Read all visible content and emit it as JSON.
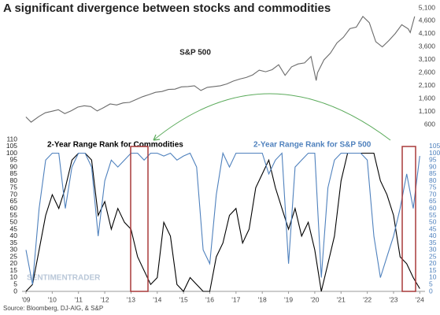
{
  "chart_data": [
    {
      "type": "line",
      "title": "A significant divergence between stocks and commodities",
      "x": [
        2009.0,
        2009.2,
        2009.5,
        2009.75,
        2010.0,
        2010.25,
        2010.5,
        2010.75,
        2011.0,
        2011.25,
        2011.5,
        2011.75,
        2012.0,
        2012.25,
        2012.5,
        2012.75,
        2013.0,
        2013.25,
        2013.5,
        2013.75,
        2014.0,
        2014.25,
        2014.5,
        2014.75,
        2015.0,
        2015.25,
        2015.5,
        2015.75,
        2016.0,
        2016.25,
        2016.5,
        2016.75,
        2017.0,
        2017.25,
        2017.5,
        2017.75,
        2018.0,
        2018.25,
        2018.5,
        2018.75,
        2019.0,
        2019.25,
        2019.5,
        2019.75,
        2020.0,
        2020.2,
        2020.25,
        2020.5,
        2020.75,
        2021.0,
        2021.25,
        2021.5,
        2021.75,
        2022.0,
        2022.25,
        2022.5,
        2022.75,
        2023.0,
        2023.25,
        2023.5,
        2023.75,
        2023.83,
        2024.0
      ],
      "series": [
        {
          "name": "S&P 500",
          "color": "#6b6b6b",
          "values": [
            900,
            700,
            920,
            1060,
            1120,
            1180,
            1030,
            1140,
            1280,
            1330,
            1300,
            1130,
            1260,
            1400,
            1360,
            1440,
            1460,
            1570,
            1680,
            1760,
            1850,
            1880,
            1960,
            1970,
            2060,
            2070,
            2100,
            1920,
            2040,
            2070,
            2100,
            2170,
            2280,
            2360,
            2420,
            2520,
            2700,
            2640,
            2720,
            2910,
            2500,
            2830,
            2940,
            2980,
            3230,
            2300,
            2600,
            3100,
            3360,
            3750,
            3970,
            4300,
            4360,
            4770,
            4530,
            3800,
            3600,
            3840,
            4110,
            4450,
            4290,
            4150,
            4770
          ]
        }
      ],
      "xlim": [
        2008.85,
        2024.4
      ],
      "ylim": [
        400,
        5100
      ],
      "yticks": [
        {
          "value": 600,
          "label": "600"
        },
        {
          "value": 1100,
          "label": "1,100"
        },
        {
          "value": 1600,
          "label": "1,600"
        },
        {
          "value": 2100,
          "label": "2,100"
        },
        {
          "value": 2600,
          "label": "2,600"
        },
        {
          "value": 3100,
          "label": "3,100"
        },
        {
          "value": 3600,
          "label": "3,600"
        },
        {
          "value": 4100,
          "label": "4,100"
        },
        {
          "value": 4600,
          "label": "4,600"
        },
        {
          "value": 5100,
          "label": "5,100"
        }
      ]
    },
    {
      "type": "line",
      "source": "Source: Bloomberg, DJ-AIG, & S&P",
      "watermark": "SENTIMENTRADER",
      "x": [
        2009.0,
        2009.25,
        2009.5,
        2009.75,
        2010.0,
        2010.25,
        2010.5,
        2010.75,
        2011.0,
        2011.25,
        2011.5,
        2011.75,
        2012.0,
        2012.25,
        2012.5,
        2012.75,
        2013.0,
        2013.25,
        2013.5,
        2013.75,
        2014.0,
        2014.25,
        2014.5,
        2014.75,
        2015.0,
        2015.25,
        2015.5,
        2015.75,
        2016.0,
        2016.25,
        2016.5,
        2016.75,
        2017.0,
        2017.25,
        2017.5,
        2017.75,
        2018.0,
        2018.25,
        2018.5,
        2018.75,
        2019.0,
        2019.25,
        2019.5,
        2019.75,
        2020.0,
        2020.25,
        2020.5,
        2020.75,
        2021.0,
        2021.25,
        2021.5,
        2021.75,
        2022.0,
        2022.25,
        2022.5,
        2022.75,
        2023.0,
        2023.25,
        2023.5,
        2023.75,
        2024.0
      ],
      "series": [
        {
          "name": "2-Year Range Rank for Commodities",
          "color": "#000000",
          "values": [
            0,
            5,
            30,
            55,
            70,
            60,
            75,
            95,
            100,
            100,
            95,
            55,
            65,
            45,
            60,
            50,
            45,
            25,
            15,
            5,
            10,
            50,
            40,
            5,
            0,
            10,
            5,
            0,
            0,
            25,
            35,
            55,
            60,
            35,
            45,
            75,
            85,
            95,
            75,
            60,
            45,
            60,
            40,
            50,
            30,
            0,
            20,
            40,
            80,
            100,
            100,
            100,
            100,
            100,
            80,
            70,
            55,
            25,
            20,
            10,
            2
          ]
        },
        {
          "name": "2-Year Range Rank for S&P 500",
          "color": "#4f81bd",
          "axis": "y2",
          "values": [
            30,
            5,
            60,
            95,
            100,
            100,
            60,
            90,
            100,
            100,
            90,
            40,
            80,
            95,
            90,
            95,
            100,
            100,
            95,
            100,
            100,
            98,
            100,
            95,
            98,
            100,
            90,
            30,
            20,
            70,
            100,
            90,
            100,
            100,
            100,
            100,
            100,
            85,
            95,
            100,
            20,
            90,
            95,
            100,
            100,
            10,
            75,
            95,
            100,
            100,
            100,
            100,
            95,
            40,
            10,
            25,
            40,
            60,
            85,
            60,
            98
          ]
        }
      ],
      "xlim": [
        2008.85,
        2024.2
      ],
      "xticks": [
        {
          "value": 2009,
          "label": "'09"
        },
        {
          "value": 2010,
          "label": "'10"
        },
        {
          "value": 2011,
          "label": "'11"
        },
        {
          "value": 2012,
          "label": "'12"
        },
        {
          "value": 2013,
          "label": "'13"
        },
        {
          "value": 2014,
          "label": "'14"
        },
        {
          "value": 2015,
          "label": "'15"
        },
        {
          "value": 2016,
          "label": "'16"
        },
        {
          "value": 2017,
          "label": "'17"
        },
        {
          "value": 2018,
          "label": "'18"
        },
        {
          "value": 2019,
          "label": "'19"
        },
        {
          "value": 2020,
          "label": "'20"
        },
        {
          "value": 2021,
          "label": "'21"
        },
        {
          "value": 2022,
          "label": "'22"
        },
        {
          "value": 2023,
          "label": "'23"
        },
        {
          "value": 2024,
          "label": "'24"
        }
      ],
      "ylim": [
        0,
        110
      ],
      "yticks": [
        0,
        5,
        10,
        15,
        20,
        25,
        30,
        35,
        40,
        45,
        50,
        55,
        60,
        65,
        70,
        75,
        80,
        85,
        90,
        95,
        100,
        105,
        110
      ],
      "y2lim": [
        0,
        110
      ],
      "y2ticks": [
        0,
        5,
        10,
        15,
        20,
        25,
        30,
        35,
        40,
        45,
        50,
        55,
        60,
        65,
        70,
        75,
        80,
        85,
        90,
        95,
        100,
        105
      ]
    }
  ]
}
